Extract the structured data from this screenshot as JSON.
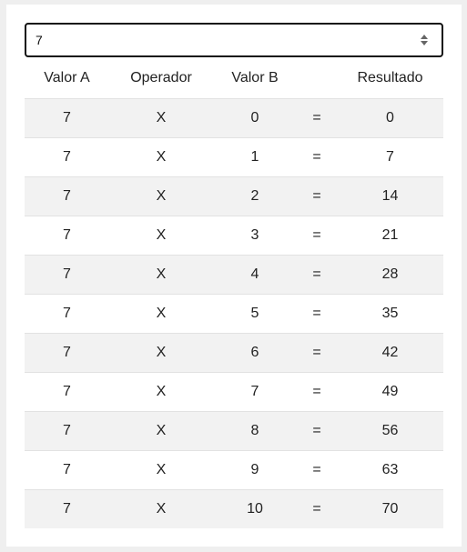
{
  "input": {
    "value": "7"
  },
  "table": {
    "headers": [
      "Valor A",
      "Operador",
      "Valor B",
      "",
      "Resultado"
    ],
    "rows": [
      [
        "7",
        "X",
        "0",
        "=",
        "0"
      ],
      [
        "7",
        "X",
        "1",
        "=",
        "7"
      ],
      [
        "7",
        "X",
        "2",
        "=",
        "14"
      ],
      [
        "7",
        "X",
        "3",
        "=",
        "21"
      ],
      [
        "7",
        "X",
        "4",
        "=",
        "28"
      ],
      [
        "7",
        "X",
        "5",
        "=",
        "35"
      ],
      [
        "7",
        "X",
        "6",
        "=",
        "42"
      ],
      [
        "7",
        "X",
        "7",
        "=",
        "49"
      ],
      [
        "7",
        "X",
        "8",
        "=",
        "56"
      ],
      [
        "7",
        "X",
        "9",
        "=",
        "63"
      ],
      [
        "7",
        "X",
        "10",
        "=",
        "70"
      ]
    ]
  }
}
